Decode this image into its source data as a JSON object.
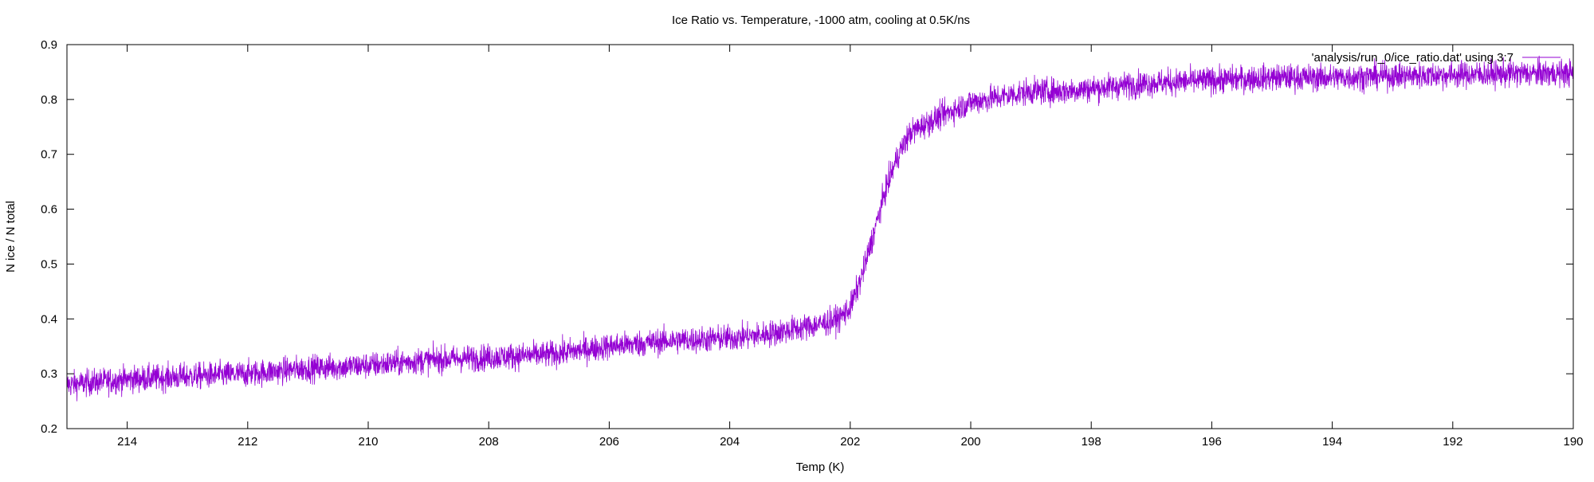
{
  "chart_data": {
    "type": "line",
    "title": "Ice Ratio vs. Temperature, -1000 atm, cooling at 0.5K/ns",
    "xlabel": "Temp (K)",
    "ylabel": "N ice / N total",
    "xlim": [
      215,
      190
    ],
    "ylim": [
      0.2,
      0.9
    ],
    "x_reversed": true,
    "x_ticks": [
      214,
      212,
      210,
      208,
      206,
      204,
      202,
      200,
      198,
      196,
      194,
      192,
      190
    ],
    "y_ticks": [
      0.2,
      0.3,
      0.4,
      0.5,
      0.6,
      0.7,
      0.8,
      0.9
    ],
    "x_tick_labels": [
      "214",
      "212",
      "210",
      "208",
      "206",
      "204",
      "202",
      "200",
      "198",
      "196",
      "194",
      "192",
      "190"
    ],
    "y_tick_labels": [
      "0.2",
      "0.3",
      "0.4",
      "0.5",
      "0.6",
      "0.7",
      "0.8",
      "0.9"
    ],
    "grid": false,
    "legend_position": "top-right",
    "series": [
      {
        "name": "'analysis/run_0/ice_ratio.dat' using 3:7",
        "color": "#9400d3",
        "noise_amplitude": 0.012,
        "x": [
          215,
          214,
          213,
          212,
          211,
          210,
          209,
          208,
          207,
          206,
          205,
          204,
          203.5,
          203,
          202.5,
          202.2,
          202,
          201.8,
          201.6,
          201.4,
          201.2,
          201,
          200.5,
          200,
          199.5,
          199,
          198.5,
          198,
          197,
          196,
          195,
          194,
          193,
          192,
          191,
          190
        ],
        "y": [
          0.28,
          0.29,
          0.295,
          0.3,
          0.31,
          0.315,
          0.325,
          0.33,
          0.335,
          0.35,
          0.36,
          0.365,
          0.37,
          0.38,
          0.39,
          0.4,
          0.42,
          0.48,
          0.56,
          0.64,
          0.7,
          0.74,
          0.77,
          0.795,
          0.805,
          0.815,
          0.815,
          0.82,
          0.83,
          0.835,
          0.84,
          0.84,
          0.843,
          0.845,
          0.847,
          0.848
        ]
      }
    ]
  }
}
